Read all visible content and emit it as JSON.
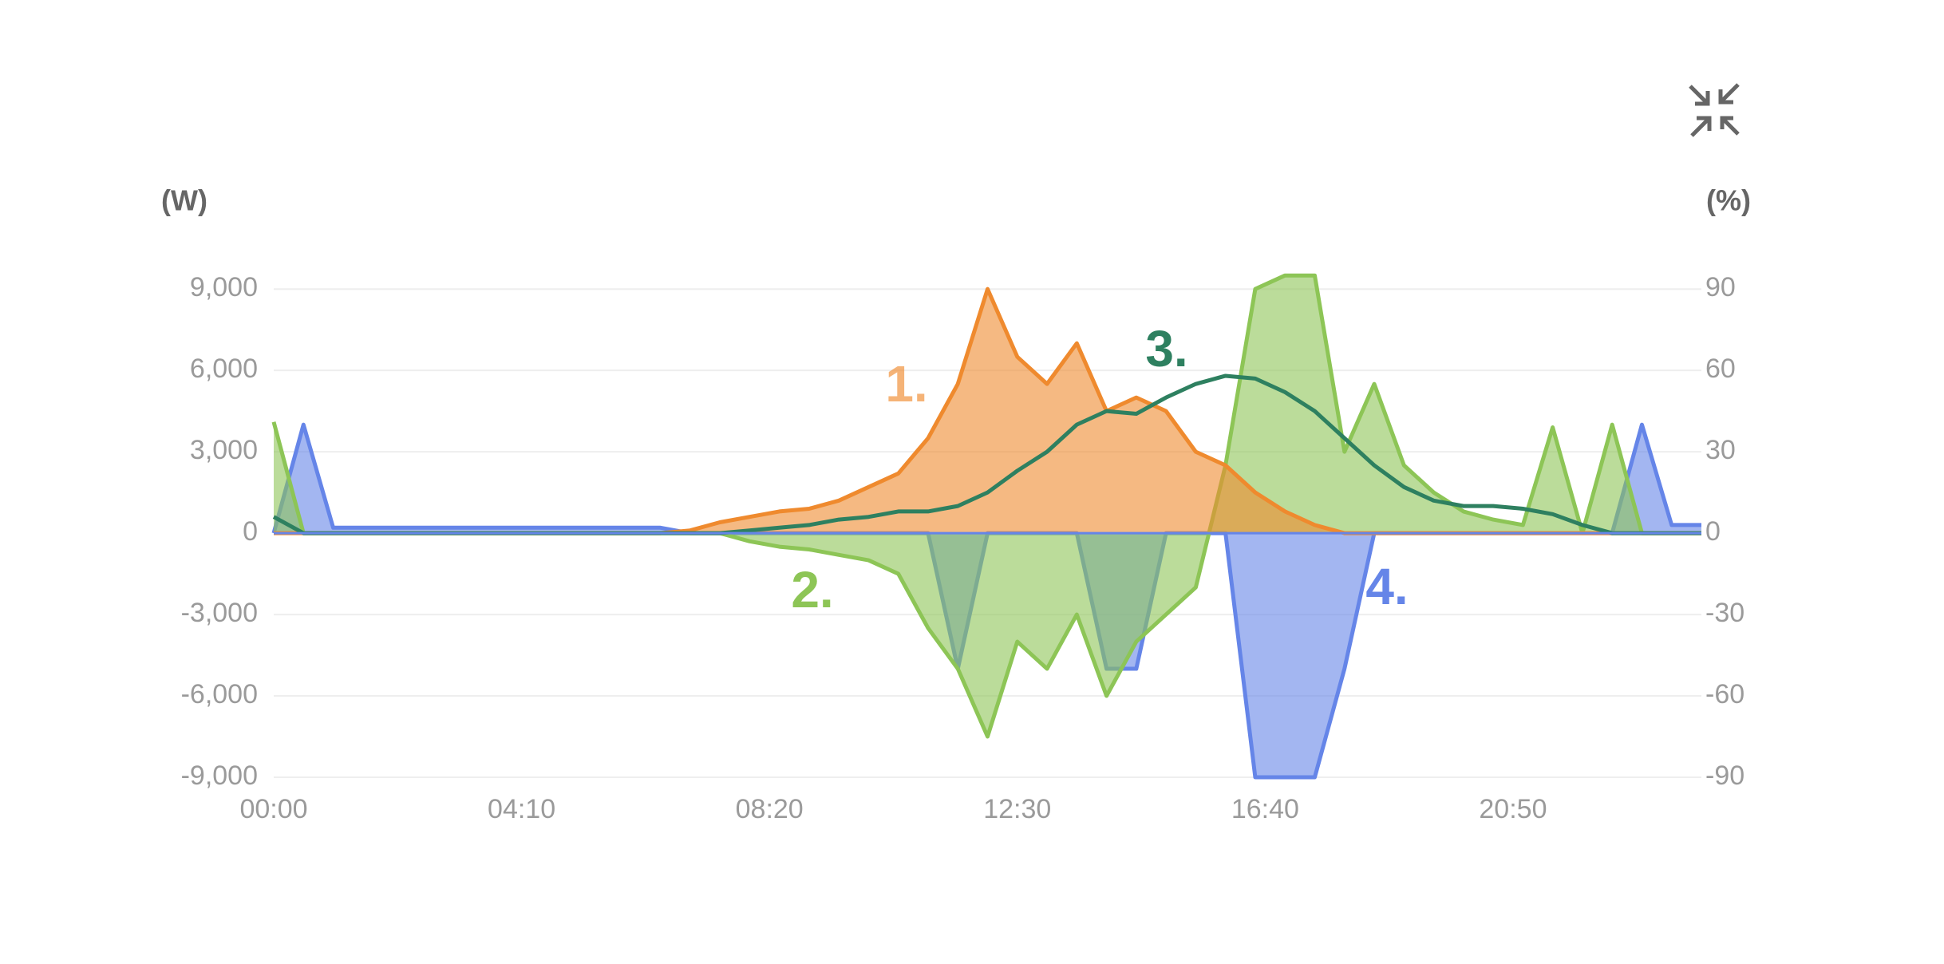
{
  "chart_data": {
    "type": "area",
    "y_label": "(W)",
    "y2_label": "(%)",
    "x": [
      0,
      30,
      60,
      90,
      120,
      150,
      180,
      210,
      240,
      270,
      300,
      330,
      360,
      390,
      420,
      450,
      480,
      510,
      540,
      570,
      600,
      630,
      660,
      690,
      720,
      750,
      780,
      810,
      840,
      870,
      900,
      930,
      960,
      990,
      1020,
      1050,
      1080,
      1110,
      1140,
      1170,
      1200,
      1230,
      1260,
      1290,
      1320,
      1350,
      1380,
      1410,
      1440
    ],
    "xlim": [
      0,
      1440
    ],
    "xticks": [
      {
        "value": 0,
        "label": "00:00"
      },
      {
        "value": 250,
        "label": "04:10"
      },
      {
        "value": 500,
        "label": "08:20"
      },
      {
        "value": 750,
        "label": "12:30"
      },
      {
        "value": 1000,
        "label": "16:40"
      },
      {
        "value": 1250,
        "label": "20:50"
      }
    ],
    "ylim": [
      -9000,
      9800
    ],
    "yticks": [
      {
        "value": -9000,
        "label": "-9,000"
      },
      {
        "value": -6000,
        "label": "-6,000"
      },
      {
        "value": -3000,
        "label": "-3,000"
      },
      0,
      {
        "value": 3000,
        "label": "3,000"
      },
      {
        "value": 6000,
        "label": "6,000"
      },
      {
        "value": 9000,
        "label": "9,000"
      }
    ],
    "y2lim": [
      -90,
      98
    ],
    "y2ticks": [
      -90,
      -60,
      -30,
      0,
      30,
      60,
      90
    ],
    "grid": true,
    "series": [
      {
        "label": "4.",
        "color": "#6585e8",
        "fill": true,
        "values": [
          0,
          4000,
          200,
          200,
          200,
          200,
          200,
          200,
          200,
          200,
          200,
          200,
          200,
          200,
          0,
          0,
          0,
          0,
          0,
          0,
          0,
          0,
          0,
          -5000,
          0,
          0,
          0,
          0,
          -5000,
          -5000,
          0,
          0,
          0,
          -9000,
          -9000,
          -9000,
          -5000,
          0,
          0,
          0,
          0,
          0,
          0,
          0,
          0,
          0,
          4000,
          300,
          300
        ]
      },
      {
        "label": "2.",
        "color": "#8dc556",
        "fill": true,
        "values": [
          4100,
          0,
          0,
          0,
          0,
          0,
          0,
          0,
          0,
          0,
          0,
          0,
          0,
          0,
          0,
          0,
          -300,
          -500,
          -600,
          -800,
          -1000,
          -1500,
          -3500,
          -5000,
          -7500,
          -4000,
          -5000,
          -3000,
          -6000,
          -4000,
          -3000,
          -2000,
          2500,
          9000,
          9500,
          9500,
          3000,
          5500,
          2500,
          1500,
          800,
          500,
          300,
          3900,
          0,
          4000,
          0,
          0,
          0
        ]
      },
      {
        "label": "1.",
        "color": "#ef8a2e",
        "fill": true,
        "values": [
          0,
          0,
          0,
          0,
          0,
          0,
          0,
          0,
          0,
          0,
          0,
          0,
          0,
          0,
          100,
          400,
          600,
          800,
          900,
          1200,
          1700,
          2200,
          3500,
          5500,
          9000,
          6500,
          5500,
          7000,
          4500,
          5000,
          4500,
          3000,
          2500,
          1500,
          800,
          300,
          0,
          0,
          0,
          0,
          0,
          0,
          0,
          0,
          0,
          0,
          0,
          0,
          0
        ]
      },
      {
        "label": "3.",
        "color": "#2e8060",
        "fill": false,
        "axis": "y2",
        "values": [
          6,
          0,
          0,
          0,
          0,
          0,
          0,
          0,
          0,
          0,
          0,
          0,
          0,
          0,
          0,
          0,
          1,
          2,
          3,
          5,
          6,
          8,
          8,
          10,
          15,
          23,
          30,
          40,
          45,
          44,
          50,
          55,
          58,
          57,
          52,
          45,
          35,
          25,
          17,
          12,
          10,
          10,
          9,
          7,
          3,
          0,
          0,
          0,
          0
        ]
      }
    ]
  }
}
